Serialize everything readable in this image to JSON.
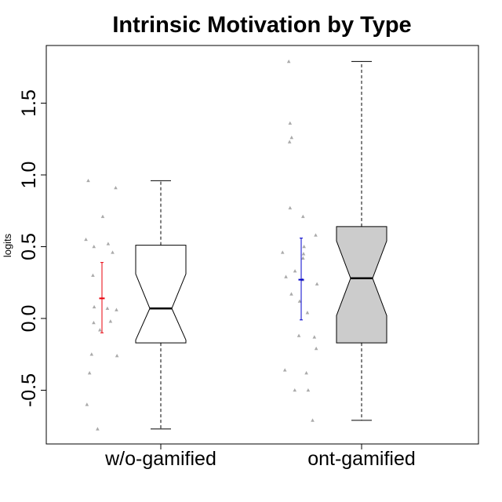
{
  "chart_data": {
    "type": "box",
    "title": "Intrinsic Motivation by Type",
    "xlabel": "",
    "ylabel": "logits",
    "ylim": [
      -0.8,
      1.85
    ],
    "yticks": [
      -0.5,
      0.0,
      0.5,
      1.0,
      1.5
    ],
    "ytick_labels": [
      "-0.5",
      "0.0",
      "0.5",
      "1.0",
      "1.5"
    ],
    "categories": [
      "w/o-gamified",
      "ont-gamified"
    ],
    "grid": false,
    "legend": "none",
    "boxes": [
      {
        "name": "w/o-gamified",
        "fill": "#ffffff",
        "whisker_low": -0.77,
        "q1": -0.17,
        "median": 0.07,
        "q3": 0.51,
        "whisker_high": 0.96,
        "notch_low": -0.15,
        "notch_high": 0.31
      },
      {
        "name": "ont-gamified",
        "fill": "#cccccc",
        "whisker_low": -0.71,
        "q1": -0.17,
        "median": 0.28,
        "q3": 0.64,
        "whisker_high": 1.79,
        "notch_low": 0.02,
        "notch_high": 0.54
      }
    ],
    "error_bars": [
      {
        "category": "w/o-gamified",
        "mean": 0.14,
        "low": -0.1,
        "high": 0.39,
        "color": "#e8000b"
      },
      {
        "category": "ont-gamified",
        "mean": 0.27,
        "low": -0.01,
        "high": 0.56,
        "color": "#0000cc"
      }
    ],
    "points": [
      {
        "category": "w/o-gamified",
        "color": "#aaaaaa",
        "values": [
          0.96,
          0.91,
          0.71,
          0.55,
          0.52,
          0.5,
          0.46,
          0.3,
          0.08,
          0.07,
          0.06,
          -0.02,
          -0.03,
          -0.08,
          -0.25,
          -0.26,
          -0.38,
          -0.6,
          -0.77
        ],
        "jitter": [
          -0.53,
          0.53,
          0.03,
          -0.62,
          0.24,
          -0.31,
          0.41,
          -0.35,
          -0.3,
          0.21,
          0.56,
          0.33,
          -0.32,
          -0.08,
          -0.4,
          0.58,
          -0.48,
          -0.58,
          -0.17
        ]
      },
      {
        "category": "ont-gamified",
        "color": "#aaaaaa",
        "values": [
          1.79,
          1.36,
          1.26,
          1.23,
          0.77,
          0.71,
          0.58,
          0.5,
          0.46,
          0.45,
          0.42,
          0.33,
          0.29,
          0.27,
          0.24,
          0.17,
          0.12,
          0.04,
          -0.12,
          -0.13,
          -0.21,
          -0.36,
          -0.38,
          -0.5,
          -0.5,
          -0.71
        ],
        "jitter": [
          -0.48,
          -0.43,
          -0.37,
          -0.45,
          -0.43,
          0.07,
          0.56,
          0.11,
          -0.72,
          0.09,
          0.07,
          -0.24,
          -0.59,
          0.05,
          0.61,
          -0.38,
          -0.06,
          0.24,
          -0.09,
          0.51,
          0.58,
          -0.63,
          0.2,
          -0.25,
          0.27,
          0.44
        ]
      }
    ]
  }
}
